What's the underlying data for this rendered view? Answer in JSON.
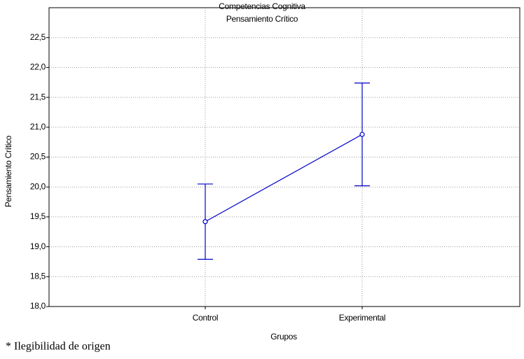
{
  "chart_data": {
    "type": "line",
    "title": "Competencias Cognitiva",
    "subtitle": "Pensamiento Crítico",
    "y_label": "Pensamiento Crítico",
    "x_label": "Grupos",
    "note": "* Ilegibilidad de origen",
    "categories": [
      "Control",
      "Experimental"
    ],
    "series": [
      {
        "name": "Pensamiento Crítico",
        "color": "#0000cc",
        "values": [
          19.42,
          20.88
        ],
        "errors": [
          0.63,
          0.86
        ]
      }
    ],
    "ylim": [
      18,
      23
    ],
    "yticks": [
      {
        "value": 18,
        "label": "18,0"
      },
      {
        "value": 18.5,
        "label": "18,5"
      },
      {
        "value": 19,
        "label": "19,0"
      },
      {
        "value": 19.5,
        "label": "19,5"
      },
      {
        "value": 20,
        "label": "20,0"
      },
      {
        "value": 20.5,
        "label": "20,5"
      },
      {
        "value": 21,
        "label": "21,0"
      },
      {
        "value": 21.5,
        "label": "21,5"
      },
      {
        "value": 22,
        "label": "22,0"
      },
      {
        "value": 22.5,
        "label": "22,5"
      }
    ],
    "grid": true
  }
}
